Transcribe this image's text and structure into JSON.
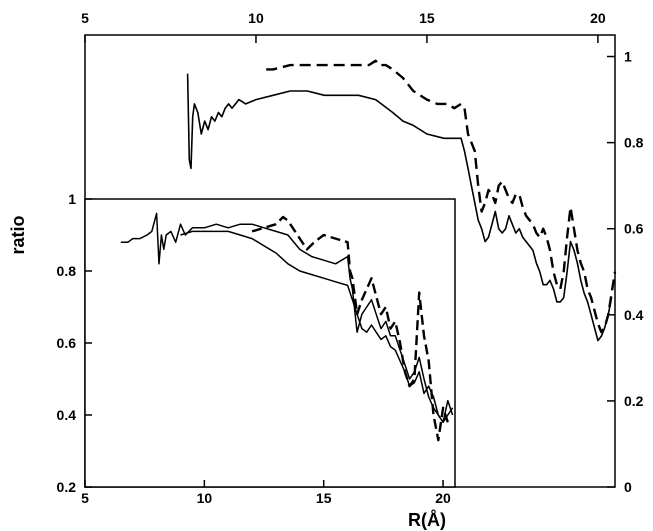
{
  "chart_data": [
    {
      "panel": "main",
      "type": "line",
      "xlabel": "R(Å)",
      "ylabel": "",
      "xlim": [
        5,
        20.5
      ],
      "ylim": [
        0,
        1.05
      ],
      "xticks": [
        5,
        10,
        15,
        20
      ],
      "yticks": [
        0,
        0.2,
        0.4,
        0.6,
        0.8,
        1
      ],
      "x_axis_position": "top",
      "y_axis_position": "right",
      "grid": false,
      "series": [
        {
          "style": "dashed",
          "x": [
            10.3,
            10.5,
            11.0,
            11.5,
            12.0,
            12.5,
            13.0,
            13.3,
            13.5,
            13.6,
            13.8,
            14.0,
            14.3,
            14.6,
            15.0,
            15.3,
            15.6,
            15.8,
            16.0,
            16.1,
            16.2,
            16.3,
            16.4,
            16.5,
            16.6,
            16.7,
            16.8,
            16.9,
            17.0,
            17.1,
            17.2,
            17.3,
            17.4,
            17.5,
            17.6,
            17.7,
            17.8,
            17.9,
            18.0,
            18.1,
            18.2,
            18.3,
            18.4,
            18.5,
            18.6,
            18.7,
            18.8,
            18.9,
            19.0,
            19.1,
            19.2,
            19.3,
            19.4,
            19.5,
            19.6,
            19.7,
            19.8,
            19.9,
            20.0,
            20.1,
            20.2,
            20.3,
            20.4,
            20.5
          ],
          "y": [
            0.97,
            0.97,
            0.98,
            0.98,
            0.98,
            0.98,
            0.98,
            0.98,
            0.99,
            0.98,
            0.98,
            0.97,
            0.95,
            0.92,
            0.9,
            0.89,
            0.89,
            0.88,
            0.89,
            0.88,
            0.82,
            0.8,
            0.78,
            0.7,
            0.64,
            0.66,
            0.69,
            0.68,
            0.66,
            0.7,
            0.71,
            0.69,
            0.67,
            0.66,
            0.68,
            0.68,
            0.65,
            0.63,
            0.62,
            0.61,
            0.59,
            0.58,
            0.6,
            0.58,
            0.55,
            0.5,
            0.47,
            0.46,
            0.5,
            0.58,
            0.65,
            0.6,
            0.55,
            0.52,
            0.5,
            0.46,
            0.44,
            0.41,
            0.38,
            0.36,
            0.37,
            0.4,
            0.45,
            0.5
          ]
        },
        {
          "style": "solid",
          "x": [
            8.0,
            8.05,
            8.1,
            8.15,
            8.2,
            8.3,
            8.4,
            8.5,
            8.6,
            8.7,
            8.8,
            8.9,
            9.0,
            9.1,
            9.2,
            9.3,
            9.5,
            9.7,
            10.0,
            10.5,
            11.0,
            11.5,
            12.0,
            12.5,
            13.0,
            13.5,
            14.0,
            14.3,
            14.6,
            15.0,
            15.5,
            16.0,
            16.1,
            16.2,
            16.3,
            16.4,
            16.5,
            16.6,
            16.7,
            16.8,
            16.9,
            17.0,
            17.1,
            17.2,
            17.3,
            17.4,
            17.5,
            17.6,
            17.7,
            17.8,
            17.9,
            18.0,
            18.1,
            18.2,
            18.3,
            18.4,
            18.5,
            18.6,
            18.7,
            18.8,
            18.9,
            19.0,
            19.1,
            19.2,
            19.3,
            19.4,
            19.5,
            19.6,
            19.7,
            19.8,
            19.9,
            20.0,
            20.1,
            20.2,
            20.3,
            20.4
          ],
          "y": [
            0.96,
            0.76,
            0.74,
            0.86,
            0.89,
            0.87,
            0.82,
            0.85,
            0.83,
            0.86,
            0.85,
            0.87,
            0.86,
            0.88,
            0.89,
            0.88,
            0.9,
            0.89,
            0.9,
            0.91,
            0.92,
            0.92,
            0.91,
            0.91,
            0.91,
            0.9,
            0.87,
            0.85,
            0.84,
            0.82,
            0.81,
            0.81,
            0.78,
            0.74,
            0.7,
            0.66,
            0.62,
            0.6,
            0.57,
            0.58,
            0.61,
            0.64,
            0.6,
            0.59,
            0.6,
            0.63,
            0.61,
            0.59,
            0.6,
            0.58,
            0.57,
            0.56,
            0.55,
            0.52,
            0.5,
            0.47,
            0.47,
            0.48,
            0.46,
            0.43,
            0.43,
            0.44,
            0.5,
            0.57,
            0.55,
            0.52,
            0.48,
            0.45,
            0.43,
            0.4,
            0.37,
            0.34,
            0.35,
            0.37,
            0.4,
            0.44
          ]
        }
      ]
    },
    {
      "panel": "inset",
      "type": "line",
      "ylabel": "ratio",
      "xlabel": "",
      "xlim": [
        5,
        20.5
      ],
      "ylim": [
        0.2,
        1
      ],
      "xticks": [
        5,
        10,
        15,
        20
      ],
      "yticks": [
        0.2,
        0.4,
        0.6,
        0.8,
        1
      ],
      "grid": false,
      "series": [
        {
          "style": "dashed",
          "x": [
            12.0,
            12.5,
            13.0,
            13.3,
            13.5,
            14.0,
            14.3,
            14.6,
            15.0,
            15.5,
            16.0,
            16.1,
            16.2,
            16.4,
            16.6,
            16.8,
            17.0,
            17.2,
            17.4,
            17.6,
            17.8,
            18.0,
            18.2,
            18.4,
            18.6,
            18.8,
            19.0,
            19.2,
            19.4,
            19.6,
            19.8,
            20.0,
            20.2
          ],
          "y": [
            0.91,
            0.92,
            0.93,
            0.95,
            0.94,
            0.89,
            0.86,
            0.88,
            0.9,
            0.89,
            0.88,
            0.8,
            0.78,
            0.68,
            0.72,
            0.75,
            0.78,
            0.73,
            0.68,
            0.7,
            0.64,
            0.66,
            0.6,
            0.52,
            0.48,
            0.5,
            0.74,
            0.62,
            0.55,
            0.4,
            0.33,
            0.42,
            0.38
          ]
        },
        {
          "style": "solid",
          "x": [
            6.5,
            6.8,
            7.0,
            7.3,
            7.6,
            7.8,
            8.0,
            8.1,
            8.2,
            8.3,
            8.4,
            8.6,
            8.8,
            9.0,
            9.2,
            9.5,
            10.0,
            10.5,
            11.0,
            11.5,
            12.0,
            12.5,
            13.0,
            13.5,
            14.0,
            14.5,
            15.0,
            15.5,
            16.0,
            16.1,
            16.2,
            16.4,
            16.6,
            16.8,
            17.0,
            17.2,
            17.4,
            17.6,
            17.8,
            18.0,
            18.2,
            18.4,
            18.6,
            18.8,
            19.0,
            19.2,
            19.4,
            19.6,
            19.8,
            20.0,
            20.2,
            20.4
          ],
          "y": [
            0.88,
            0.88,
            0.89,
            0.89,
            0.9,
            0.91,
            0.96,
            0.82,
            0.9,
            0.86,
            0.9,
            0.91,
            0.88,
            0.93,
            0.9,
            0.92,
            0.92,
            0.93,
            0.92,
            0.93,
            0.93,
            0.92,
            0.91,
            0.9,
            0.86,
            0.84,
            0.83,
            0.82,
            0.84,
            0.78,
            0.75,
            0.63,
            0.68,
            0.7,
            0.72,
            0.68,
            0.64,
            0.66,
            0.62,
            0.62,
            0.58,
            0.54,
            0.5,
            0.52,
            0.56,
            0.5,
            0.45,
            0.42,
            0.4,
            0.38,
            0.44,
            0.4
          ]
        },
        {
          "style": "solid",
          "x": [
            9.0,
            9.5,
            10.0,
            10.5,
            11.0,
            11.5,
            12.0,
            12.5,
            13.0,
            13.5,
            14.0,
            14.5,
            15.0,
            15.5,
            16.0,
            16.2,
            16.4,
            16.6,
            16.8,
            17.0,
            17.2,
            17.4,
            17.6,
            17.8,
            18.0,
            18.2,
            18.4,
            18.6,
            18.8,
            19.0,
            19.2,
            19.4,
            19.6,
            19.8,
            20.0,
            20.2,
            20.4
          ],
          "y": [
            0.9,
            0.91,
            0.91,
            0.91,
            0.91,
            0.9,
            0.89,
            0.87,
            0.85,
            0.82,
            0.8,
            0.79,
            0.78,
            0.77,
            0.76,
            0.72,
            0.68,
            0.64,
            0.63,
            0.65,
            0.63,
            0.61,
            0.62,
            0.59,
            0.58,
            0.55,
            0.52,
            0.48,
            0.49,
            0.52,
            0.46,
            0.48,
            0.45,
            0.4,
            0.38,
            0.4,
            0.42
          ]
        }
      ]
    }
  ]
}
